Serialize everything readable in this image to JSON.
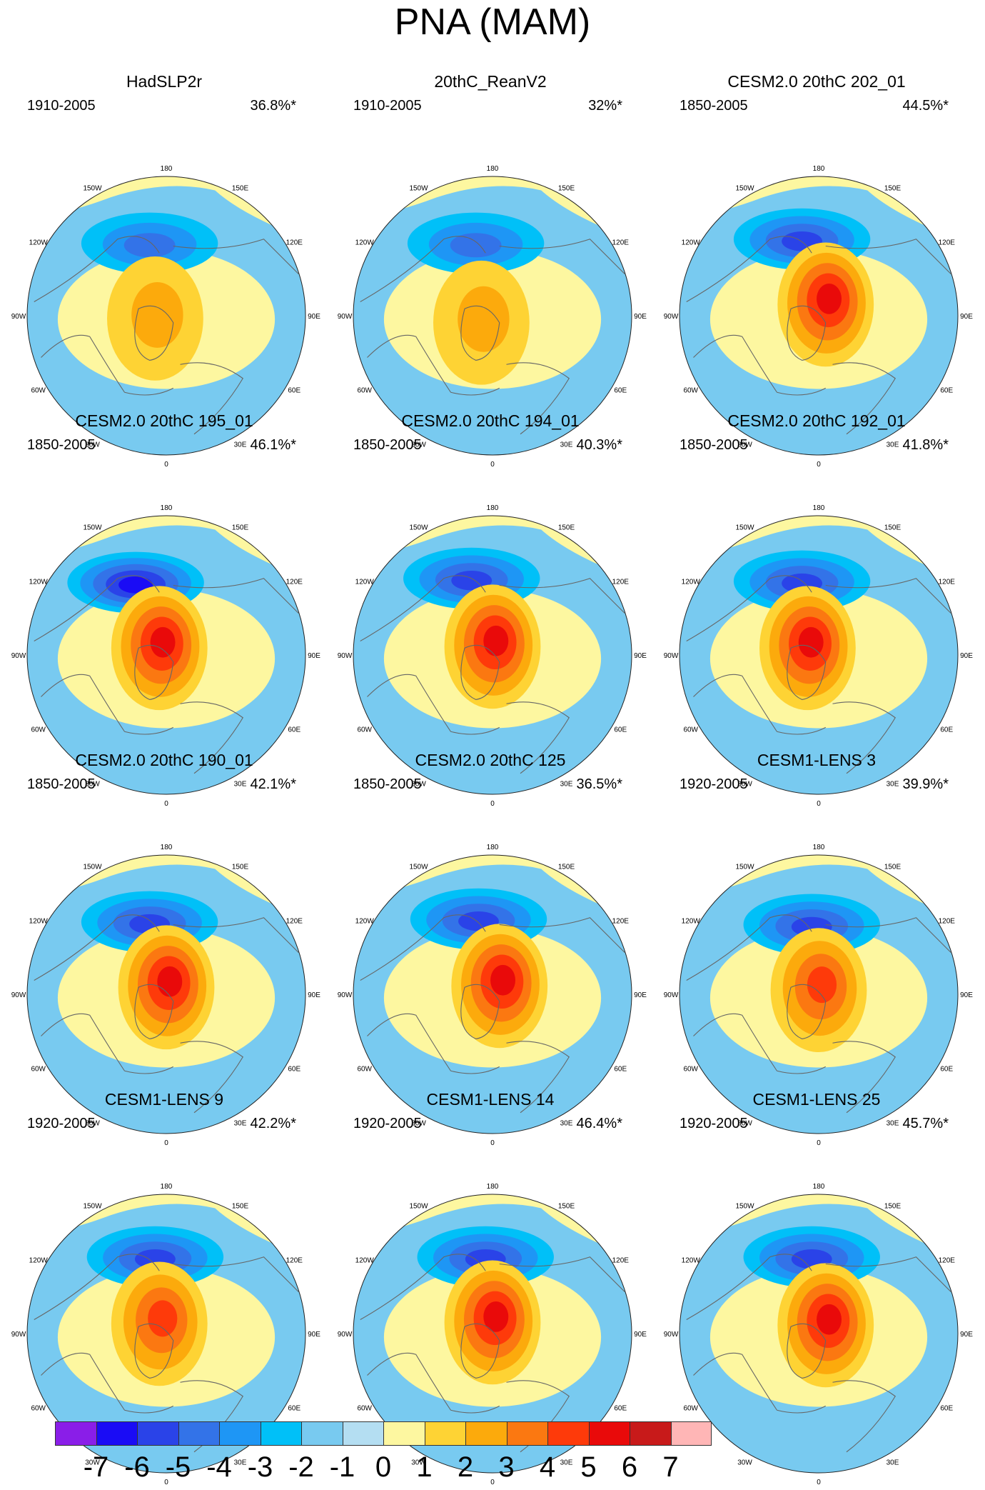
{
  "title": "PNA (MAM)",
  "longitude_labels": [
    "180",
    "150E",
    "120E",
    "90E",
    "60E",
    "30E",
    "0",
    "30W",
    "60W",
    "90W",
    "120W",
    "150W"
  ],
  "panels": [
    {
      "title": "HadSLP2r",
      "period": "1910-2005",
      "variance": "36.8%*",
      "low_min": -3,
      "high_max": 2,
      "low_pos": [
        -0.12,
        -0.52
      ],
      "high_pos": [
        -0.08,
        0.02
      ]
    },
    {
      "title": "20thC_ReanV2",
      "period": "1910-2005",
      "variance": "32%*",
      "low_min": -3,
      "high_max": 2,
      "low_pos": [
        -0.12,
        -0.52
      ],
      "high_pos": [
        -0.08,
        0.05
      ]
    },
    {
      "title": "CESM2.0 20thC 202_01",
      "period": "1850-2005",
      "variance": "44.5%*",
      "low_min": -4,
      "high_max": 5,
      "low_pos": [
        -0.12,
        -0.55
      ],
      "high_pos": [
        0.05,
        -0.08
      ]
    },
    {
      "title": "CESM2.0 20thC 195_01",
      "period": "1850-2005",
      "variance": "46.1%*",
      "low_min": -5,
      "high_max": 5,
      "low_pos": [
        -0.22,
        -0.52
      ],
      "high_pos": [
        -0.05,
        -0.05
      ]
    },
    {
      "title": "CESM2.0 20thC 194_01",
      "period": "1850-2005",
      "variance": "40.3%*",
      "low_min": -4,
      "high_max": 5,
      "low_pos": [
        -0.15,
        -0.55
      ],
      "high_pos": [
        0.0,
        -0.06
      ]
    },
    {
      "title": "CESM2.0 20thC 192_01",
      "period": "1850-2005",
      "variance": "41.8%*",
      "low_min": -4,
      "high_max": 5,
      "low_pos": [
        -0.12,
        -0.53
      ],
      "high_pos": [
        -0.08,
        -0.05
      ]
    },
    {
      "title": "CESM2.0 20thC 190_01",
      "period": "1850-2005",
      "variance": "42.1%*",
      "low_min": -4,
      "high_max": 5,
      "low_pos": [
        -0.12,
        -0.52
      ],
      "high_pos": [
        0.0,
        -0.05
      ]
    },
    {
      "title": "CESM2.0 20thC 125",
      "period": "1850-2005",
      "variance": "36.5%*",
      "low_min": -4,
      "high_max": 5,
      "low_pos": [
        -0.1,
        -0.54
      ],
      "high_pos": [
        0.05,
        -0.06
      ]
    },
    {
      "title": "CESM1-LENS 3",
      "period": "1920-2005",
      "variance": "39.9%*",
      "low_min": -4,
      "high_max": 4,
      "low_pos": [
        -0.05,
        -0.5
      ],
      "high_pos": [
        0.0,
        -0.03
      ]
    },
    {
      "title": "CESM1-LENS 9",
      "period": "1920-2005",
      "variance": "42.2%*",
      "low_min": -4,
      "high_max": 4,
      "low_pos": [
        -0.08,
        -0.55
      ],
      "high_pos": [
        -0.05,
        -0.07
      ]
    },
    {
      "title": "CESM1-LENS 14",
      "period": "1920-2005",
      "variance": "46.4%*",
      "low_min": -4,
      "high_max": 5,
      "low_pos": [
        -0.05,
        -0.55
      ],
      "high_pos": [
        0.0,
        -0.08
      ]
    },
    {
      "title": "CESM1-LENS 25",
      "period": "1920-2005",
      "variance": "45.7%*",
      "low_min": -4,
      "high_max": 5,
      "low_pos": [
        -0.05,
        -0.55
      ],
      "high_pos": [
        0.05,
        -0.06
      ]
    }
  ],
  "colorbar": {
    "labels": [
      "-7",
      "-6",
      "-5",
      "-4",
      "-3",
      "-2",
      "-1",
      "0",
      "1",
      "2",
      "3",
      "4",
      "5",
      "6",
      "7"
    ],
    "colors": [
      "#8a1ee8",
      "#1a0cf5",
      "#2a43e8",
      "#3373e8",
      "#1e96f5",
      "#00c0f8",
      "#78caf0",
      "#b4def2",
      "#fdf7a0",
      "#fed334",
      "#fcaa0c",
      "#fb7811",
      "#fe3a0a",
      "#e90a0a",
      "#c81a1a",
      "#ffb6b6"
    ]
  },
  "style": {
    "land_outline": "#666666",
    "ocean_tint": "#b4def2",
    "positive_tint": "#fdf7a0"
  }
}
